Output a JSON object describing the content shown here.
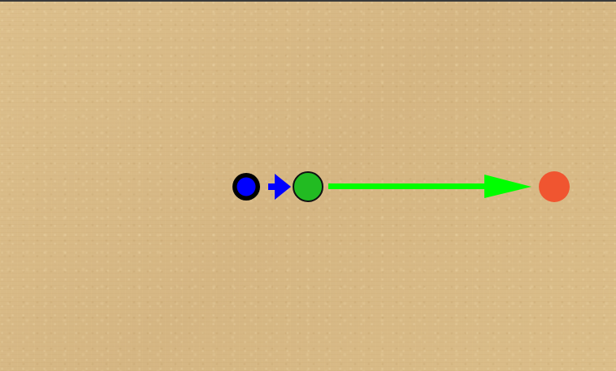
{
  "scene": {
    "background": "sand-texture",
    "colors": {
      "background": "#d9bb88",
      "player_fill": "#0000ff",
      "player_ring": "#000000",
      "small_arrow": "#0000ff",
      "ball_fill": "#22bb22",
      "big_arrow": "#00ff00",
      "target_fill": "#f05530"
    },
    "objects": [
      {
        "id": "player",
        "kind": "circle",
        "icon": "player-piece-icon"
      },
      {
        "id": "player-arrow",
        "kind": "arrow",
        "icon": "blue-arrow-icon"
      },
      {
        "id": "ball",
        "kind": "circle",
        "icon": "green-ball-icon"
      },
      {
        "id": "ball-arrow",
        "kind": "arrow",
        "icon": "green-arrow-icon"
      },
      {
        "id": "target",
        "kind": "circle",
        "icon": "target-icon"
      }
    ]
  }
}
